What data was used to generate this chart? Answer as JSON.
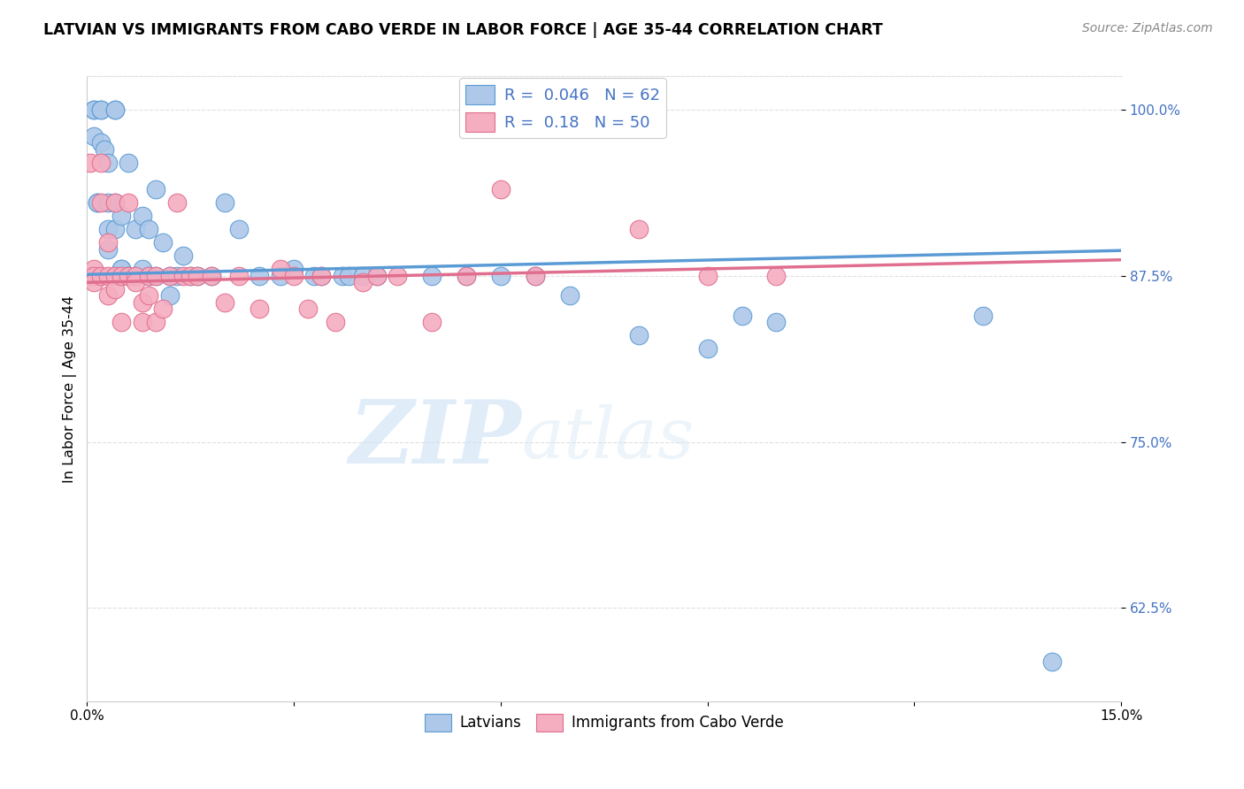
{
  "title": "LATVIAN VS IMMIGRANTS FROM CABO VERDE IN LABOR FORCE | AGE 35-44 CORRELATION CHART",
  "source": "Source: ZipAtlas.com",
  "ylabel": "In Labor Force | Age 35-44",
  "xlim": [
    0.0,
    0.15
  ],
  "ylim": [
    0.555,
    1.025
  ],
  "yticks": [
    0.625,
    0.75,
    0.875,
    1.0
  ],
  "ytick_labels": [
    "62.5%",
    "75.0%",
    "87.5%",
    "100.0%"
  ],
  "xticks": [
    0.0,
    0.03,
    0.06,
    0.09,
    0.12,
    0.15
  ],
  "xtick_labels": [
    "0.0%",
    "",
    "",
    "",
    "",
    "15.0%"
  ],
  "latvian_R": 0.046,
  "latvian_N": 62,
  "caboverde_R": 0.18,
  "caboverde_N": 50,
  "latvian_color": "#adc8e8",
  "caboverde_color": "#f5adc0",
  "trendline_latvian_color": "#5b9bd5",
  "trendline_caboverde_color": "#e06e8e",
  "legend_text_color": "#4472c4",
  "background_color": "#ffffff",
  "grid_color": "#e0e0e0",
  "watermark_zip": "ZIP",
  "watermark_atlas": "atlas",
  "latvian_x": [
    0.0005,
    0.0005,
    0.001,
    0.001,
    0.001,
    0.0015,
    0.0015,
    0.002,
    0.002,
    0.002,
    0.0025,
    0.003,
    0.003,
    0.003,
    0.003,
    0.004,
    0.004,
    0.004,
    0.004,
    0.005,
    0.005,
    0.005,
    0.006,
    0.006,
    0.007,
    0.007,
    0.008,
    0.008,
    0.009,
    0.009,
    0.01,
    0.01,
    0.011,
    0.012,
    0.012,
    0.013,
    0.014,
    0.015,
    0.016,
    0.018,
    0.02,
    0.022,
    0.025,
    0.028,
    0.03,
    0.033,
    0.034,
    0.037,
    0.038,
    0.04,
    0.042,
    0.05,
    0.055,
    0.06,
    0.065,
    0.07,
    0.08,
    0.09,
    0.095,
    0.1,
    0.13,
    0.14
  ],
  "latvian_y": [
    0.875,
    0.875,
    1.0,
    1.0,
    0.98,
    0.93,
    0.93,
    1.0,
    1.0,
    0.975,
    0.97,
    0.96,
    0.93,
    0.91,
    0.895,
    1.0,
    1.0,
    0.93,
    0.91,
    0.92,
    0.88,
    0.88,
    0.96,
    0.875,
    0.91,
    0.875,
    0.92,
    0.88,
    0.91,
    0.875,
    0.94,
    0.875,
    0.9,
    0.875,
    0.86,
    0.875,
    0.89,
    0.875,
    0.875,
    0.875,
    0.93,
    0.91,
    0.875,
    0.875,
    0.88,
    0.875,
    0.875,
    0.875,
    0.875,
    0.875,
    0.875,
    0.875,
    0.875,
    0.875,
    0.875,
    0.86,
    0.83,
    0.82,
    0.845,
    0.84,
    0.845,
    0.585
  ],
  "caboverde_x": [
    0.0005,
    0.001,
    0.001,
    0.001,
    0.002,
    0.002,
    0.002,
    0.003,
    0.003,
    0.003,
    0.004,
    0.004,
    0.004,
    0.005,
    0.005,
    0.006,
    0.006,
    0.007,
    0.007,
    0.008,
    0.008,
    0.009,
    0.009,
    0.01,
    0.01,
    0.011,
    0.012,
    0.013,
    0.014,
    0.015,
    0.016,
    0.018,
    0.02,
    0.022,
    0.025,
    0.028,
    0.03,
    0.032,
    0.034,
    0.036,
    0.04,
    0.042,
    0.045,
    0.05,
    0.055,
    0.06,
    0.065,
    0.08,
    0.09,
    0.1
  ],
  "caboverde_y": [
    0.96,
    0.88,
    0.875,
    0.87,
    0.96,
    0.93,
    0.875,
    0.9,
    0.875,
    0.86,
    0.93,
    0.875,
    0.865,
    0.875,
    0.84,
    0.93,
    0.875,
    0.875,
    0.87,
    0.855,
    0.84,
    0.875,
    0.86,
    0.875,
    0.84,
    0.85,
    0.875,
    0.93,
    0.875,
    0.875,
    0.875,
    0.875,
    0.855,
    0.875,
    0.85,
    0.88,
    0.875,
    0.85,
    0.875,
    0.84,
    0.87,
    0.875,
    0.875,
    0.84,
    0.875,
    0.94,
    0.875,
    0.91,
    0.875,
    0.875
  ],
  "trendline_lv_x0": 0.0,
  "trendline_lv_y0": 0.876,
  "trendline_lv_x1": 0.15,
  "trendline_lv_y1": 0.894,
  "trendline_cv_x0": 0.0,
  "trendline_cv_y0": 0.87,
  "trendline_cv_x1": 0.15,
  "trendline_cv_y1": 0.887
}
